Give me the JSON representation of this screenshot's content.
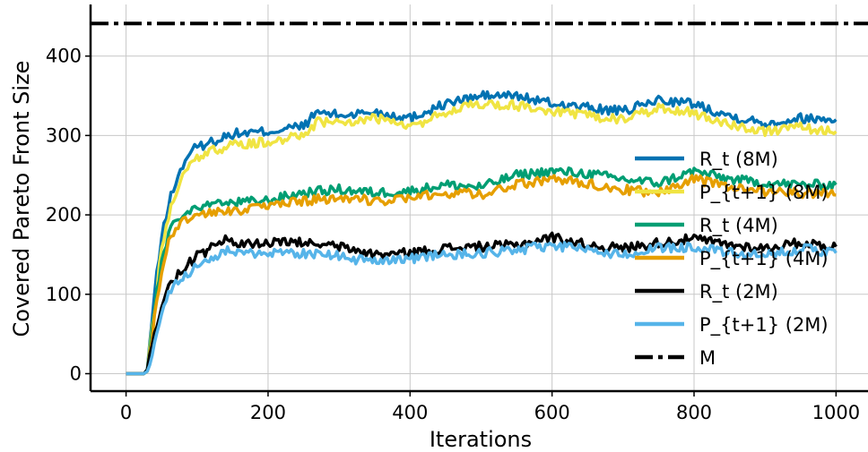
{
  "chart_data": {
    "type": "line",
    "xlabel": "Iterations",
    "ylabel": "Covered Pareto Front Size",
    "xlim": [
      -50,
      1045
    ],
    "ylim": [
      -22,
      465
    ],
    "xticks": [
      0,
      200,
      400,
      600,
      800,
      1000
    ],
    "yticks": [
      0,
      100,
      200,
      300,
      400
    ],
    "grid": true,
    "legend_position": "right",
    "series": [
      {
        "name": "R_t (8M)",
        "color": "#0072b2",
        "dash": "solid",
        "x": [
          0,
          25,
          30,
          40,
          50,
          60,
          70,
          80,
          90,
          100,
          120,
          150,
          200,
          250,
          270,
          300,
          350,
          400,
          450,
          500,
          550,
          600,
          650,
          700,
          750,
          800,
          850,
          900,
          950,
          1000
        ],
        "y": [
          0,
          0,
          5,
          100,
          170,
          215,
          240,
          262,
          280,
          285,
          292,
          302,
          305,
          312,
          330,
          325,
          330,
          322,
          340,
          350,
          350,
          340,
          335,
          330,
          345,
          340,
          325,
          315,
          322,
          320
        ]
      },
      {
        "name": "P_{t+1} (8M)",
        "color": "#f0e442",
        "dash": "solid",
        "x": [
          0,
          25,
          30,
          40,
          50,
          60,
          70,
          80,
          90,
          100,
          120,
          150,
          200,
          250,
          270,
          300,
          350,
          400,
          450,
          500,
          550,
          600,
          650,
          700,
          750,
          800,
          850,
          900,
          950,
          1000
        ],
        "y": [
          0,
          0,
          3,
          80,
          155,
          200,
          228,
          250,
          268,
          272,
          280,
          288,
          292,
          300,
          318,
          315,
          322,
          310,
          330,
          340,
          338,
          330,
          325,
          320,
          335,
          328,
          315,
          305,
          310,
          305
        ]
      },
      {
        "name": "R_t (4M)",
        "color": "#009e73",
        "dash": "solid",
        "x": [
          0,
          25,
          30,
          40,
          50,
          60,
          70,
          80,
          90,
          100,
          150,
          200,
          250,
          300,
          350,
          400,
          450,
          500,
          550,
          600,
          650,
          700,
          750,
          800,
          850,
          900,
          950,
          1000
        ],
        "y": [
          0,
          0,
          5,
          80,
          140,
          175,
          192,
          200,
          205,
          210,
          215,
          218,
          228,
          232,
          228,
          230,
          238,
          235,
          250,
          255,
          252,
          245,
          240,
          255,
          245,
          240,
          238,
          238
        ]
      },
      {
        "name": "P_{t+1} (4M)",
        "color": "#e69f00",
        "dash": "solid",
        "x": [
          0,
          25,
          30,
          40,
          50,
          60,
          70,
          80,
          90,
          100,
          150,
          200,
          250,
          300,
          350,
          400,
          450,
          500,
          550,
          600,
          650,
          700,
          750,
          800,
          850,
          900,
          950,
          1000
        ],
        "y": [
          0,
          0,
          3,
          70,
          130,
          165,
          183,
          192,
          198,
          200,
          205,
          210,
          218,
          222,
          218,
          220,
          228,
          226,
          238,
          245,
          240,
          232,
          228,
          245,
          235,
          230,
          228,
          225
        ]
      },
      {
        "name": "R_t (2M)",
        "color": "#000000",
        "dash": "solid",
        "x": [
          0,
          25,
          30,
          40,
          50,
          60,
          70,
          80,
          90,
          100,
          120,
          140,
          160,
          200,
          250,
          300,
          350,
          400,
          450,
          500,
          550,
          600,
          650,
          700,
          750,
          800,
          850,
          900,
          950,
          1000
        ],
        "y": [
          0,
          0,
          5,
          50,
          85,
          108,
          122,
          132,
          140,
          148,
          158,
          168,
          162,
          165,
          165,
          160,
          150,
          152,
          158,
          160,
          162,
          172,
          162,
          158,
          165,
          170,
          162,
          158,
          165,
          160
        ]
      },
      {
        "name": "P_{t+1} (2M)",
        "color": "#56b4e9",
        "dash": "solid",
        "x": [
          0,
          25,
          30,
          40,
          50,
          60,
          70,
          80,
          90,
          100,
          120,
          140,
          160,
          200,
          250,
          300,
          350,
          400,
          450,
          500,
          550,
          600,
          650,
          700,
          750,
          800,
          850,
          900,
          950,
          1000
        ],
        "y": [
          0,
          0,
          3,
          40,
          75,
          98,
          112,
          120,
          128,
          135,
          145,
          155,
          150,
          152,
          152,
          148,
          140,
          145,
          150,
          152,
          155,
          162,
          155,
          150,
          158,
          160,
          152,
          148,
          158,
          152
        ]
      },
      {
        "name": "M",
        "color": "#000000",
        "dash": "dashdot",
        "x": [
          -50,
          1045
        ],
        "y": [
          441,
          441
        ]
      }
    ]
  }
}
